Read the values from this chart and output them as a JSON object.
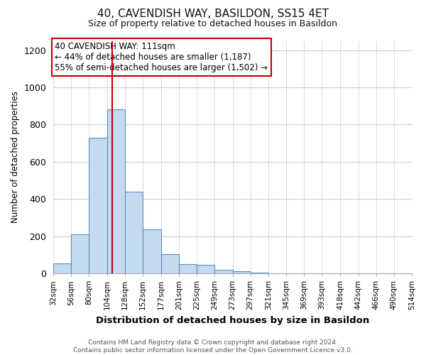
{
  "title": "40, CAVENDISH WAY, BASILDON, SS15 4ET",
  "subtitle": "Size of property relative to detached houses in Basildon",
  "xlabel": "Distribution of detached houses by size in Basildon",
  "ylabel": "Number of detached properties",
  "footer_lines": [
    "Contains HM Land Registry data © Crown copyright and database right 2024.",
    "Contains public sector information licensed under the Open Government Licence v3.0."
  ],
  "bin_labels": [
    "32sqm",
    "56sqm",
    "80sqm",
    "104sqm",
    "128sqm",
    "152sqm",
    "177sqm",
    "201sqm",
    "225sqm",
    "249sqm",
    "273sqm",
    "297sqm",
    "321sqm",
    "345sqm",
    "369sqm",
    "393sqm",
    "418sqm",
    "442sqm",
    "466sqm",
    "490sqm",
    "514sqm"
  ],
  "bar_values": [
    55,
    210,
    730,
    880,
    440,
    235,
    105,
    50,
    45,
    20,
    10,
    5,
    0,
    0,
    0,
    0,
    0,
    0,
    0,
    0
  ],
  "bar_color": "#c5d9f0",
  "bar_edge_color": "#5a8fc2",
  "vline_color": "#c00000",
  "annotation_box_text": "40 CAVENDISH WAY: 111sqm\n← 44% of detached houses are smaller (1,187)\n55% of semi-detached houses are larger (1,502) →",
  "annotation_box_color": "#c00000",
  "annotation_box_bg": "#ffffff",
  "ylim": [
    0,
    1250
  ],
  "bin_edges_sqm": [
    32,
    56,
    80,
    104,
    128,
    152,
    177,
    201,
    225,
    249,
    273,
    297,
    321,
    345,
    369,
    393,
    418,
    442,
    466,
    490,
    514
  ],
  "property_sqm": 111,
  "background_color": "#ffffff",
  "grid_color": "#cccccc",
  "title_fontsize": 11,
  "subtitle_fontsize": 9,
  "ylabel_fontsize": 8.5,
  "xlabel_fontsize": 9.5,
  "tick_fontsize": 7.5,
  "ytick_fontsize": 9,
  "annotation_fontsize": 8.5,
  "footer_fontsize": 6.5
}
